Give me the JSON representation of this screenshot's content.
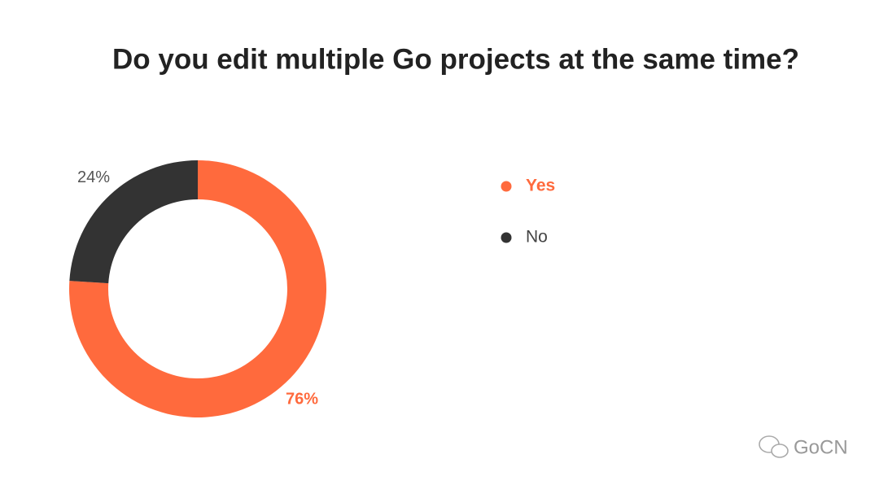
{
  "chart_data": {
    "type": "pie",
    "title": "Do you edit multiple Go projects at the same time?",
    "categories": [
      "Yes",
      "No"
    ],
    "values": [
      76,
      24
    ],
    "value_labels": [
      "76%",
      "24%"
    ],
    "colors": [
      "#ff6a3d",
      "#333333"
    ],
    "donut": true,
    "legend": "right"
  },
  "watermark": "GoCN"
}
